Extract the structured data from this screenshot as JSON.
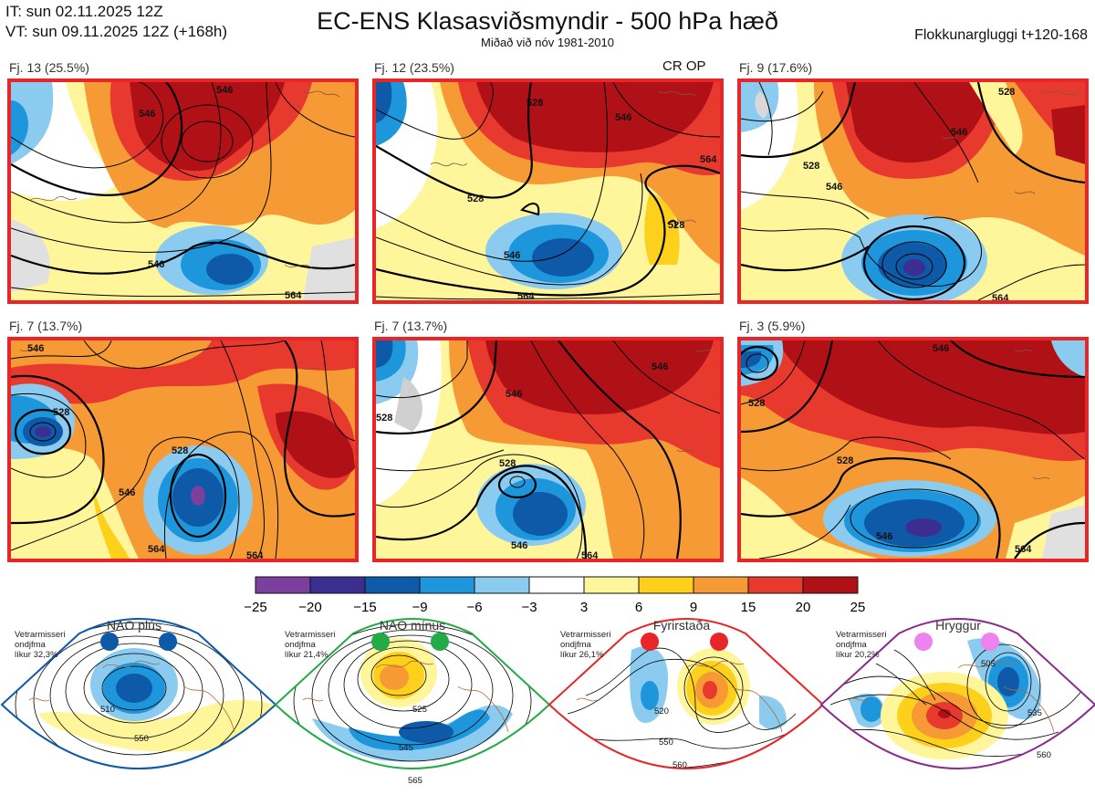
{
  "header": {
    "it_line": "IT: sun 02.11.2025 12Z",
    "vt_line": "VT: sun 09.11.2025 12Z  (+168h)",
    "title": "EC-ENS Klasasviðsmyndir - 500 hPa hæð",
    "subtitle": "Miðað við nóv 1981-2010",
    "window_label": "Flokkunargluggi t+120-168"
  },
  "panels": [
    {
      "label": "Fj. 13 (25.5%)",
      "tag": "",
      "contours": [
        "546",
        "546",
        "564",
        "546"
      ]
    },
    {
      "label": "Fj. 12 (23.5%)",
      "tag": "CR OP",
      "contours": [
        "528",
        "546",
        "564",
        "528",
        "546",
        "564",
        "528"
      ]
    },
    {
      "label": "Fj. 9 (17.6%)",
      "tag": "",
      "contours": [
        "528",
        "546",
        "528",
        "546",
        "564"
      ]
    },
    {
      "label": "Fj. 7 (13.7%)",
      "tag": "",
      "contours": [
        "546",
        "528",
        "546",
        "564",
        "564",
        "528"
      ]
    },
    {
      "label": "Fj. 7 (13.7%)",
      "tag": "",
      "contours": [
        "546",
        "546",
        "528",
        "546",
        "564",
        "528"
      ]
    },
    {
      "label": "Fj. 3 (5.9%)",
      "tag": "",
      "contours": [
        "546",
        "528",
        "528",
        "546",
        "564"
      ]
    }
  ],
  "chart_data": {
    "type": "heatmap",
    "title": "EC-ENS Klasasviðsmyndir - 500 hPa hæð",
    "colorbar": {
      "ticks": [
        "−25",
        "−20",
        "−15",
        "−9",
        "−6",
        "−3",
        "3",
        "6",
        "9",
        "15",
        "20",
        "25"
      ],
      "boundaries": [
        -25,
        -20,
        -15,
        -9,
        -6,
        -3,
        3,
        6,
        9,
        15,
        20,
        25
      ],
      "colors": [
        "#7b3f9e",
        "#3c2d91",
        "#0f5aa8",
        "#1e96dc",
        "#8ccbf0",
        "#ffffff",
        "#fff59a",
        "#fdd01c",
        "#f69a35",
        "#e8392f",
        "#b01116"
      ]
    },
    "cluster_probabilities": [
      {
        "cluster": "Fj. 13",
        "percent": 25.5
      },
      {
        "cluster": "Fj. 12",
        "percent": 23.5
      },
      {
        "cluster": "Fj. 9",
        "percent": 17.6
      },
      {
        "cluster": "Fj. 7",
        "percent": 13.7
      },
      {
        "cluster": "Fj. 7",
        "percent": 13.7
      },
      {
        "cluster": "Fj. 3",
        "percent": 5.9
      }
    ]
  },
  "regimes": [
    {
      "name": "NAO plús",
      "note": [
        "Vetrarmisseri",
        "ondjfma",
        "líkur 32,3%"
      ],
      "dot_color": "#0f5aa8",
      "border_color": "#0f5aa8",
      "labels": [
        "510",
        "550"
      ],
      "probability": 32.3
    },
    {
      "name": "NAO mínus",
      "note": [
        "Vetrarmisseri",
        "ondjfma",
        "líkur 21,4%"
      ],
      "dot_color": "#22ab47",
      "border_color": "#22ab47",
      "labels": [
        "525",
        "545",
        "565"
      ],
      "probability": 21.4
    },
    {
      "name": "Fyrirstaða",
      "note": [
        "Vetrarmisseri",
        "ondjfma",
        "líkur 26,1%"
      ],
      "dot_color": "#e8262a",
      "border_color": "#e8262a",
      "labels": [
        "520",
        "550",
        "560"
      ],
      "probability": 26.1
    },
    {
      "name": "Hryggur",
      "note": [
        "Vetrarmisseri",
        "ondjfma",
        "líkur 20,2%"
      ],
      "dot_color": "#ee82ee",
      "border_color": "#8b2a8f",
      "labels": [
        "505",
        "535",
        "560"
      ],
      "probability": 20.2
    }
  ]
}
